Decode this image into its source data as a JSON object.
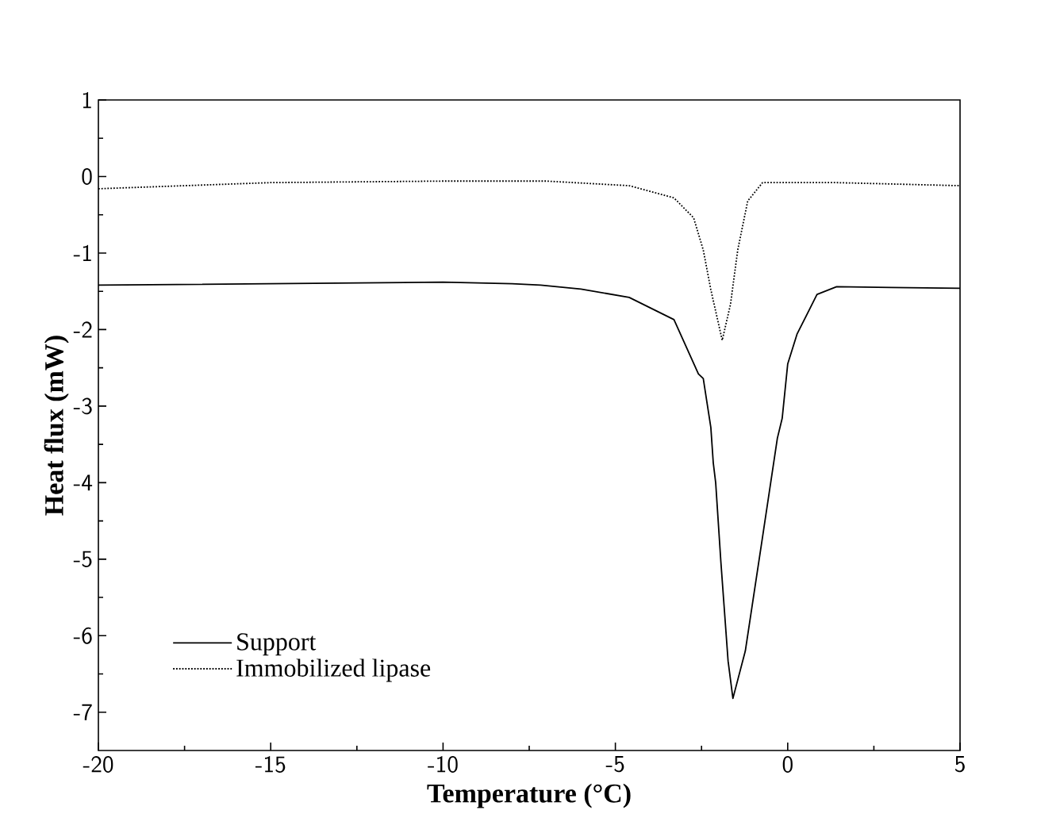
{
  "chart_data": {
    "type": "line",
    "xlabel": "Temperature (°C)",
    "ylabel": "Heat flux (mW)",
    "xlim": [
      -20,
      5
    ],
    "ylim": [
      -7.5,
      1
    ],
    "xticks": [
      -20,
      -15,
      -10,
      -5,
      0,
      5
    ],
    "yticks": [
      -7,
      -6,
      -5,
      -4,
      -3,
      -2,
      -1,
      0,
      1
    ],
    "legend": "bottom left",
    "grid": false,
    "marker": "none",
    "series": [
      {
        "name": "Support",
        "color": "#000000",
        "line_style": "solid",
        "x": [
          -20,
          -15,
          -10,
          -8,
          -7.17,
          -6,
          -4.6,
          -3.3,
          -2.59,
          -2.45,
          -2.23,
          -2.16,
          -2.09,
          -1.94,
          -1.73,
          -1.59,
          -1.23,
          -0.73,
          -0.3,
          -0.16,
          0,
          0.27,
          0.85,
          1.42,
          3,
          5
        ],
        "values": [
          -1.42,
          -1.4,
          -1.38,
          -1.4,
          -1.42,
          -1.47,
          -1.58,
          -1.87,
          -2.58,
          -2.64,
          -3.28,
          -3.74,
          -4.0,
          -5.03,
          -6.33,
          -6.82,
          -6.2,
          -4.71,
          -3.42,
          -3.16,
          -2.45,
          -2.06,
          -1.54,
          -1.44,
          -1.45,
          -1.46
        ]
      },
      {
        "name": "Immobilized lipase",
        "color": "#000000",
        "line_style": "dotted",
        "x": [
          -20,
          -15,
          -10,
          -7,
          -4.6,
          -3.3,
          -2.73,
          -2.45,
          -2.23,
          -1.9,
          -1.66,
          -1.45,
          -1.16,
          -0.73,
          1.42,
          5
        ],
        "values": [
          -0.16,
          -0.08,
          -0.06,
          -0.06,
          -0.12,
          -0.28,
          -0.54,
          -0.96,
          -1.48,
          -2.14,
          -1.67,
          -0.96,
          -0.32,
          -0.08,
          -0.08,
          -0.12
        ]
      }
    ]
  }
}
